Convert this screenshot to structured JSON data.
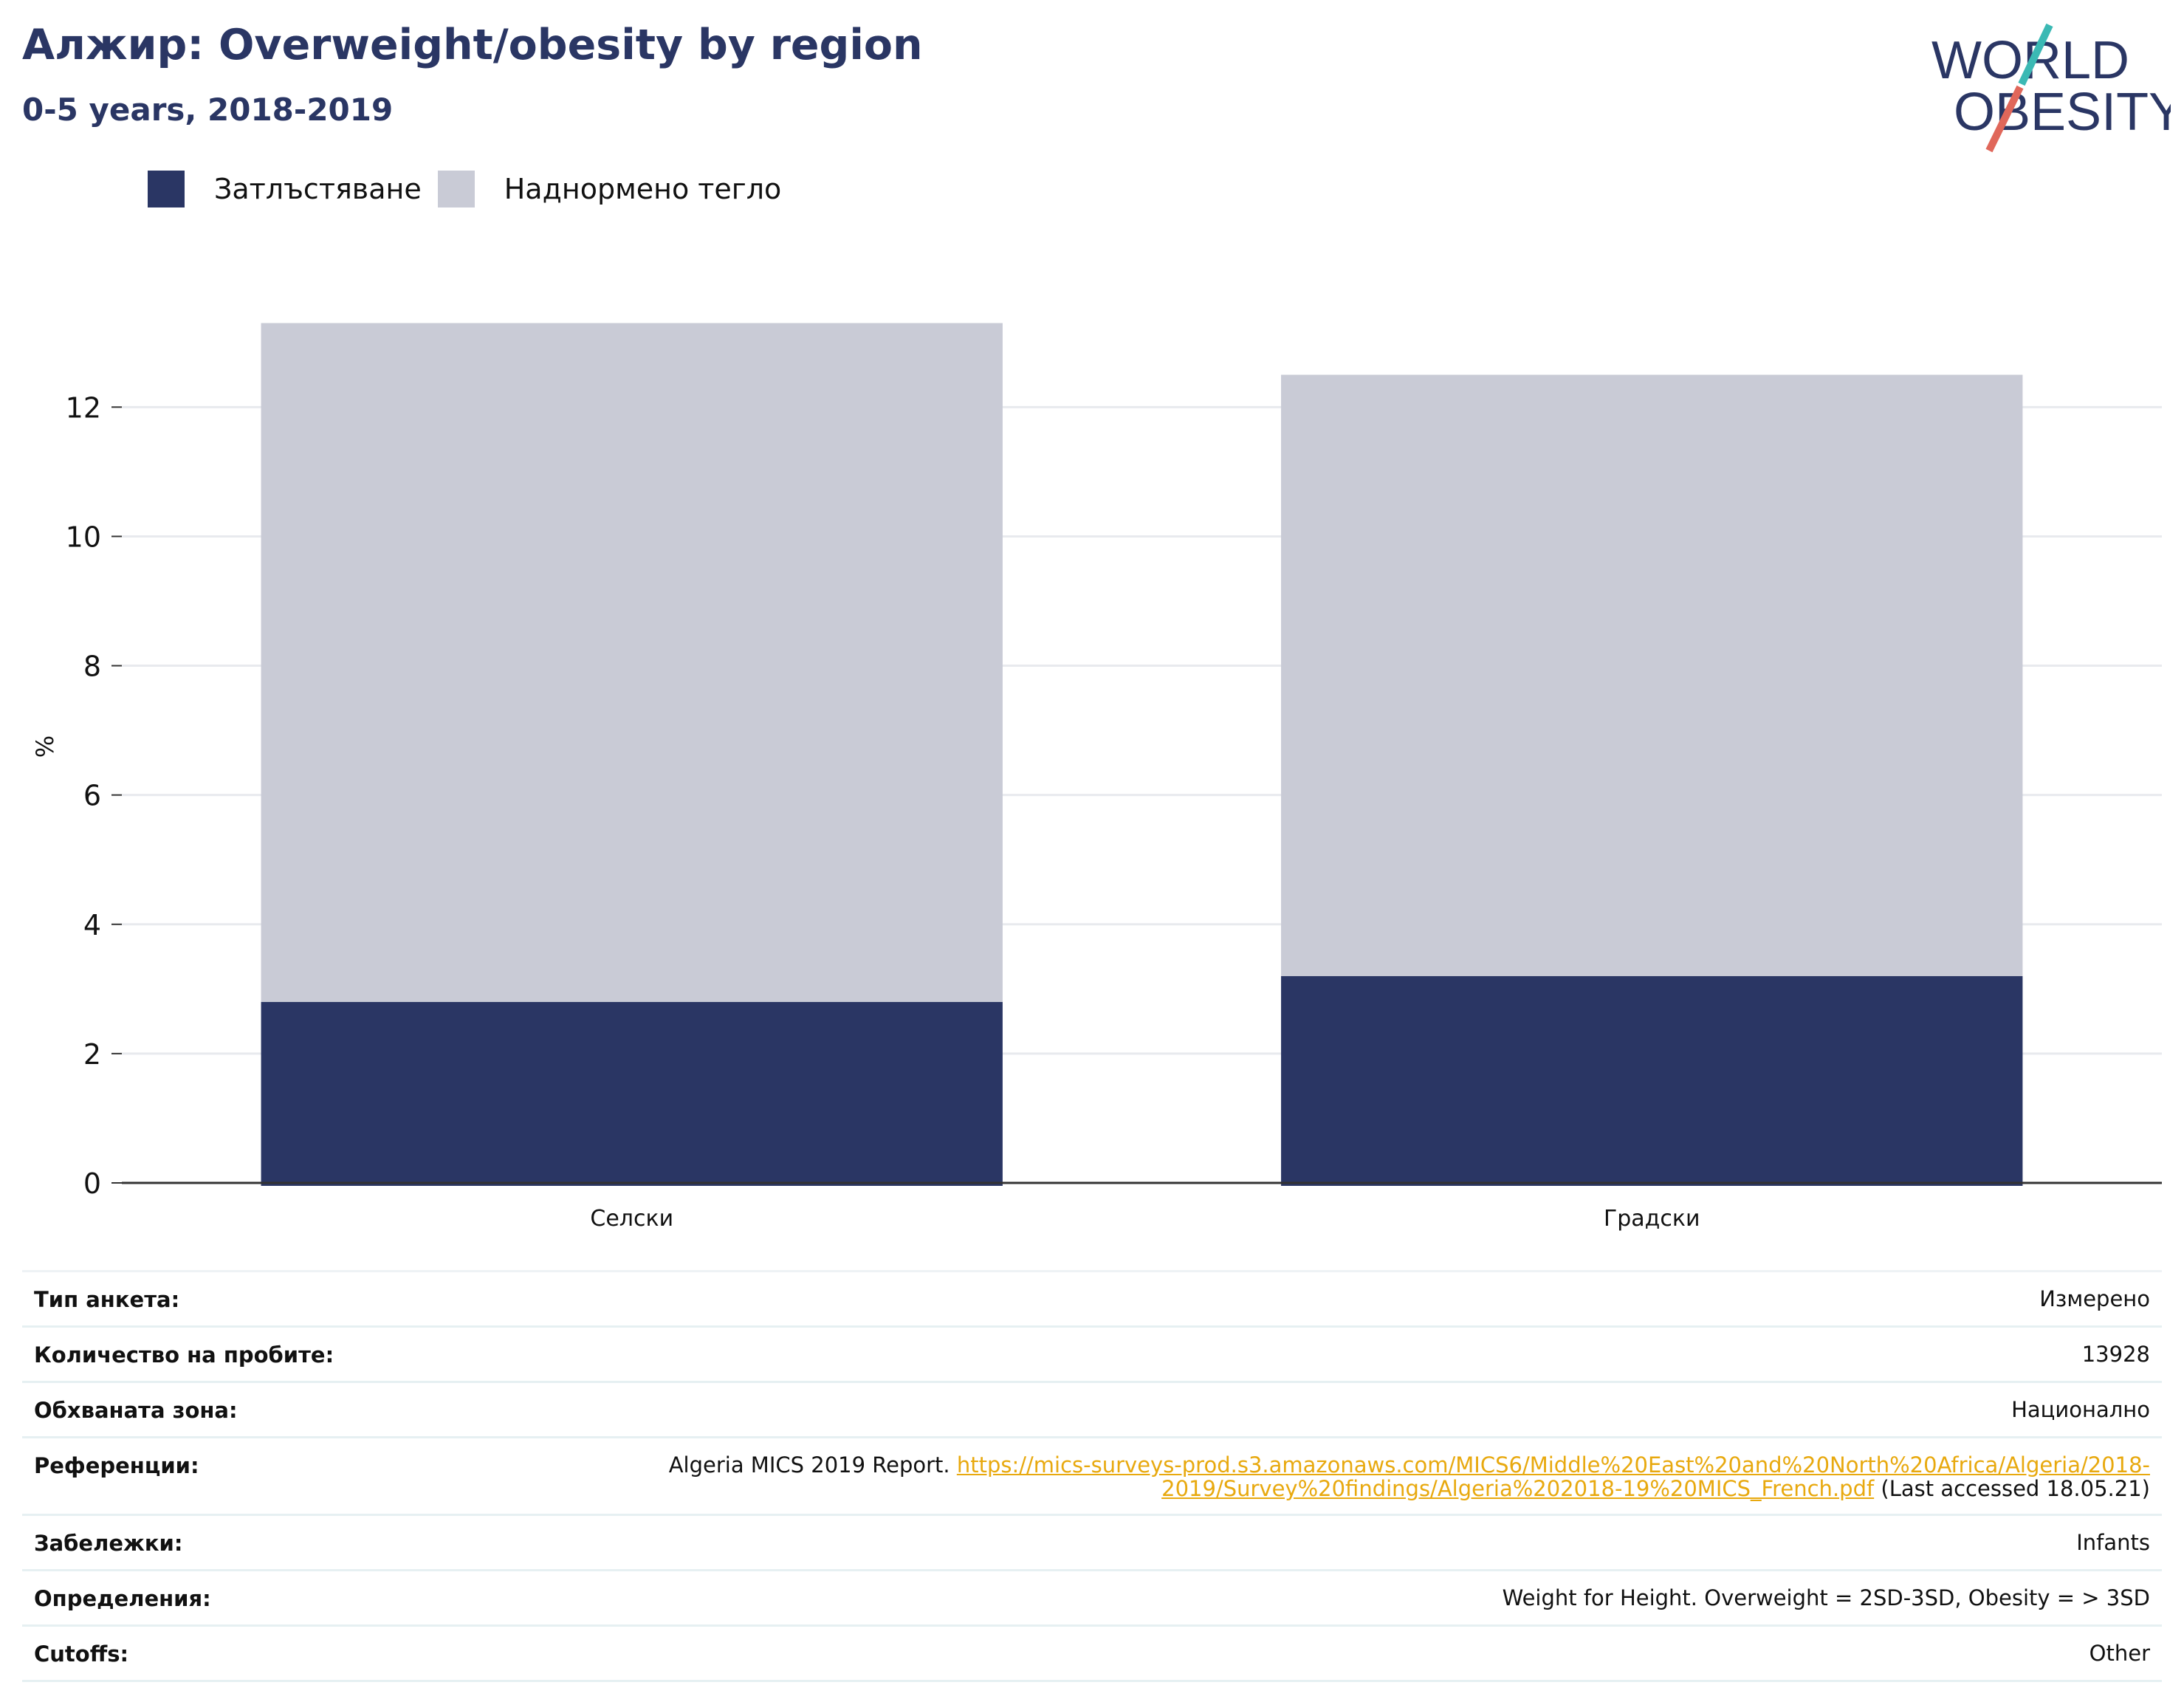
{
  "title": "Алжир: Overweight/obesity by region",
  "subtitle": "0-5 years, 2018-2019",
  "logo": {
    "line1": "WORLD",
    "line2": "OBESITY"
  },
  "colors": {
    "obesity": "#2a3664",
    "overweight": "#c9cbd6",
    "title": "#2a3664",
    "link": "#e8a90f",
    "logo_teal": "#3bb9b4",
    "logo_red": "#e0675a"
  },
  "chart_data": {
    "type": "bar",
    "stacked": true,
    "categories": [
      "Селски",
      "Градски"
    ],
    "series": [
      {
        "name": "Затлъстяване",
        "values": [
          2.8,
          3.2
        ]
      },
      {
        "name": "Наднормено тегло",
        "values": [
          10.5,
          9.3
        ]
      }
    ],
    "ylabel": "%",
    "ylim": [
      0,
      13.5
    ],
    "yticks": [
      0,
      2,
      4,
      6,
      8,
      10,
      12
    ],
    "grid": true,
    "legend_position": "top-left"
  },
  "info": {
    "survey_type": {
      "label": "Тип анкета:",
      "value": "Измерено"
    },
    "sample_size": {
      "label": "Количество на пробите:",
      "value": "13928"
    },
    "area": {
      "label": "Обхваната зона:",
      "value": "Национално"
    },
    "references": {
      "label": "Референции:",
      "prefix": "Algeria MICS 2019 Report. ",
      "url_line1": "https://mics-surveys-prod.s3.amazonaws.com/MICS6/Middle%20East%20and%20North%20Africa/Algeria/2018-",
      "url_line2": "2019/Survey%20findings/Algeria%202018-19%20MICS_French.pdf",
      "suffix": " (Last accessed 18.05.21)"
    },
    "notes": {
      "label": "Забележки:",
      "value": "Infants"
    },
    "definitions": {
      "label": "Определения:",
      "value": "Weight for Height. Overweight = 2SD-3SD, Obesity = > 3SD"
    },
    "cutoffs": {
      "label": "Cutoffs:",
      "value": "Other"
    }
  }
}
